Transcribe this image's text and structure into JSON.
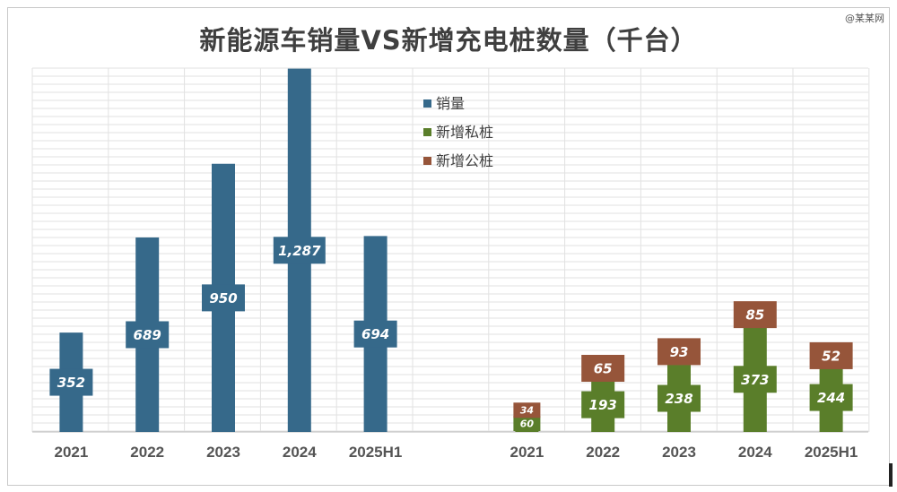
{
  "title": "新能源车销量VS新增充电桩数量（千台）",
  "watermark": "@某某网",
  "colors": {
    "sales": "#36698a",
    "private": "#5a7e2a",
    "public": "#96553a",
    "grid": "#e2e2e2",
    "axis_text": "#555555"
  },
  "chart_data": [
    {
      "type": "bar",
      "categories": [
        "2021",
        "2022",
        "2023",
        "2024",
        "2025H1"
      ],
      "series": [
        {
          "name": "销量",
          "values": [
            352,
            689,
            950,
            1287,
            694
          ],
          "labels": [
            "352",
            "689",
            "950",
            "1,287",
            "694"
          ]
        }
      ]
    },
    {
      "type": "bar",
      "stacked": true,
      "categories": [
        "2021",
        "2022",
        "2023",
        "2024",
        "2025H1"
      ],
      "series": [
        {
          "name": "新增私桩",
          "values": [
            60,
            193,
            238,
            373,
            244
          ],
          "labels": [
            "60",
            "193",
            "238",
            "373",
            "244"
          ]
        },
        {
          "name": "新增公桩",
          "values": [
            34,
            65,
            93,
            85,
            52
          ],
          "labels": [
            "34",
            "65",
            "93",
            "85",
            "52"
          ]
        }
      ]
    }
  ],
  "legend": {
    "position": "top-center",
    "items": [
      "销量",
      "新增私桩",
      "新增公桩"
    ]
  }
}
